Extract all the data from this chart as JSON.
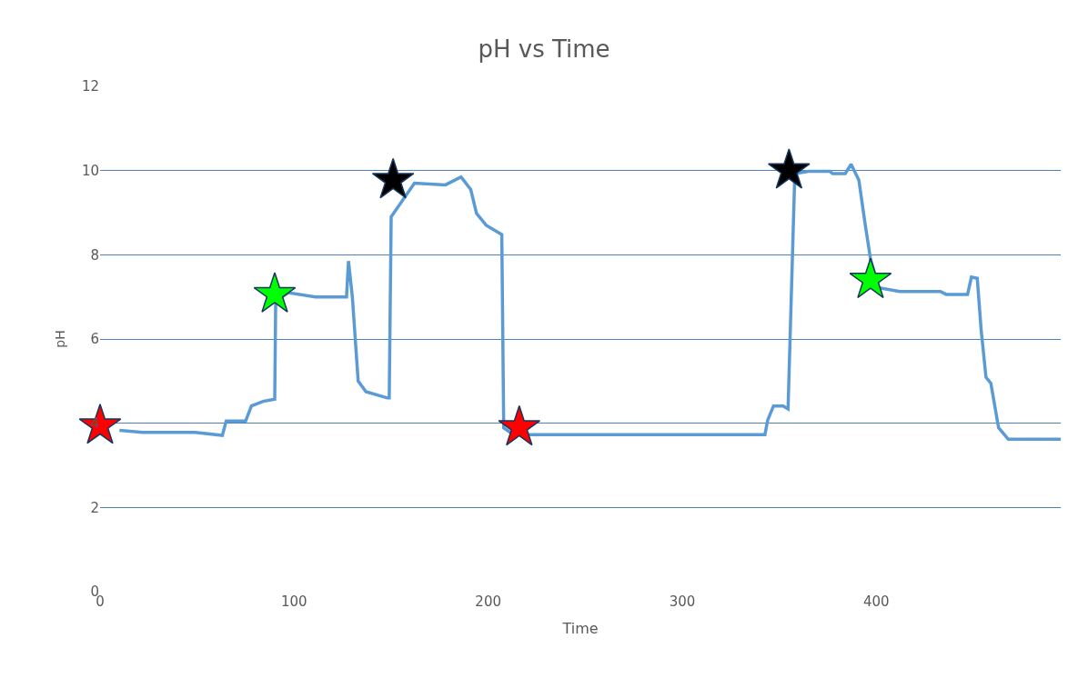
{
  "chart_data": {
    "type": "line",
    "title": "pH vs Time",
    "xlabel": "Time",
    "ylabel": "pH",
    "xlim": [
      0,
      495
    ],
    "xticks": [
      0,
      100,
      200,
      300,
      400
    ],
    "ylim": [
      0,
      12
    ],
    "yticks": [
      0,
      2,
      4,
      6,
      8,
      10,
      12
    ],
    "grid": "y",
    "series": [
      {
        "color": "#5b9bd5",
        "marker": "none",
        "x": [
          10,
          22,
          49,
          63,
          65,
          75,
          78,
          84,
          90,
          90.5,
          97,
          111,
          127,
          128,
          130,
          133,
          137,
          148,
          149,
          150,
          162,
          178,
          186,
          191,
          194,
          199,
          207,
          208,
          213,
          342.6,
          344,
          347,
          352,
          354.5,
          358,
          365,
          376,
          377.5,
          384,
          387,
          391,
          394,
          397,
          401,
          412,
          433,
          436,
          447,
          449,
          452,
          454,
          456.5,
          459,
          463,
          468,
          495
        ],
        "values": [
          3.83,
          3.78,
          3.78,
          3.71,
          4.05,
          4.05,
          4.41,
          4.52,
          4.57,
          6.9,
          7.1,
          7.0,
          7.0,
          7.85,
          7.0,
          5.0,
          4.75,
          4.6,
          4.6,
          8.9,
          9.7,
          9.66,
          9.85,
          9.55,
          8.98,
          8.7,
          8.48,
          3.89,
          3.73,
          3.73,
          4.07,
          4.41,
          4.41,
          4.34,
          9.93,
          9.98,
          9.98,
          9.93,
          9.93,
          10.15,
          9.77,
          8.8,
          7.9,
          7.22,
          7.13,
          7.13,
          7.06,
          7.06,
          7.47,
          7.44,
          6.22,
          5.09,
          4.95,
          3.89,
          3.62,
          3.62
        ]
      },
      {
        "type": "scatter",
        "color": "#ff0000",
        "marker": "star",
        "x": [
          0,
          216
        ],
        "values": [
          3.94,
          3.9
        ]
      },
      {
        "type": "scatter",
        "color": "#00ff00",
        "marker": "star",
        "x": [
          90,
          397
        ],
        "values": [
          7.06,
          7.4
        ]
      },
      {
        "type": "scatter",
        "color": "#000000",
        "marker": "star",
        "x": [
          151,
          355
        ],
        "values": [
          9.77,
          10.0
        ]
      }
    ]
  }
}
